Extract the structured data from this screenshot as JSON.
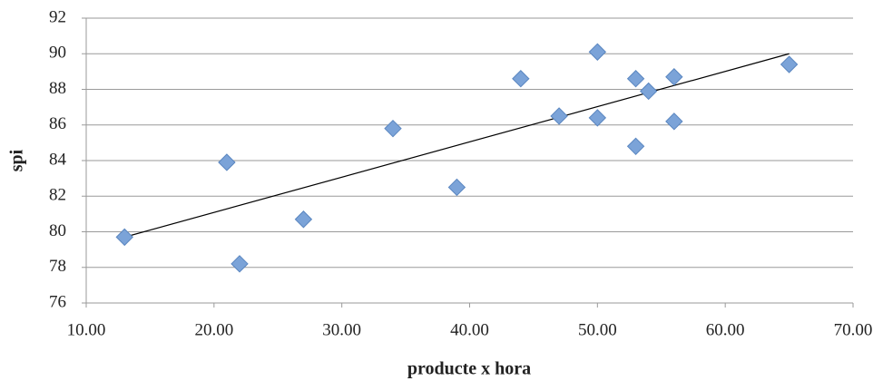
{
  "chart_data": {
    "type": "scatter",
    "x_label": "producte x hora",
    "y_label": "spi",
    "x": [
      13,
      21,
      22,
      27,
      34,
      39,
      44,
      47,
      50,
      50,
      53,
      53,
      54,
      56,
      56,
      65
    ],
    "values": [
      79.7,
      83.9,
      78.2,
      80.7,
      85.8,
      82.5,
      88.6,
      86.5,
      90.1,
      86.4,
      88.6,
      84.8,
      87.9,
      88.7,
      86.2,
      89.4
    ],
    "color": "#7ba3d8",
    "trendline": {
      "x": [
        13,
        65
      ],
      "y": [
        79.7,
        90.0
      ],
      "color": "#000000"
    },
    "xlim": [
      10,
      70
    ],
    "xticks": [
      {
        "value": 10,
        "label": "10.00"
      },
      {
        "value": 20,
        "label": "20.00"
      },
      {
        "value": 30,
        "label": "30.00"
      },
      {
        "value": 40,
        "label": "40.00"
      },
      {
        "value": 50,
        "label": "50.00"
      },
      {
        "value": 60,
        "label": "60.00"
      },
      {
        "value": 70,
        "label": "70.00"
      }
    ],
    "ylim": [
      76,
      92
    ],
    "yticks": [
      76,
      78,
      80,
      82,
      84,
      86,
      88,
      90,
      92
    ],
    "grid": true
  }
}
